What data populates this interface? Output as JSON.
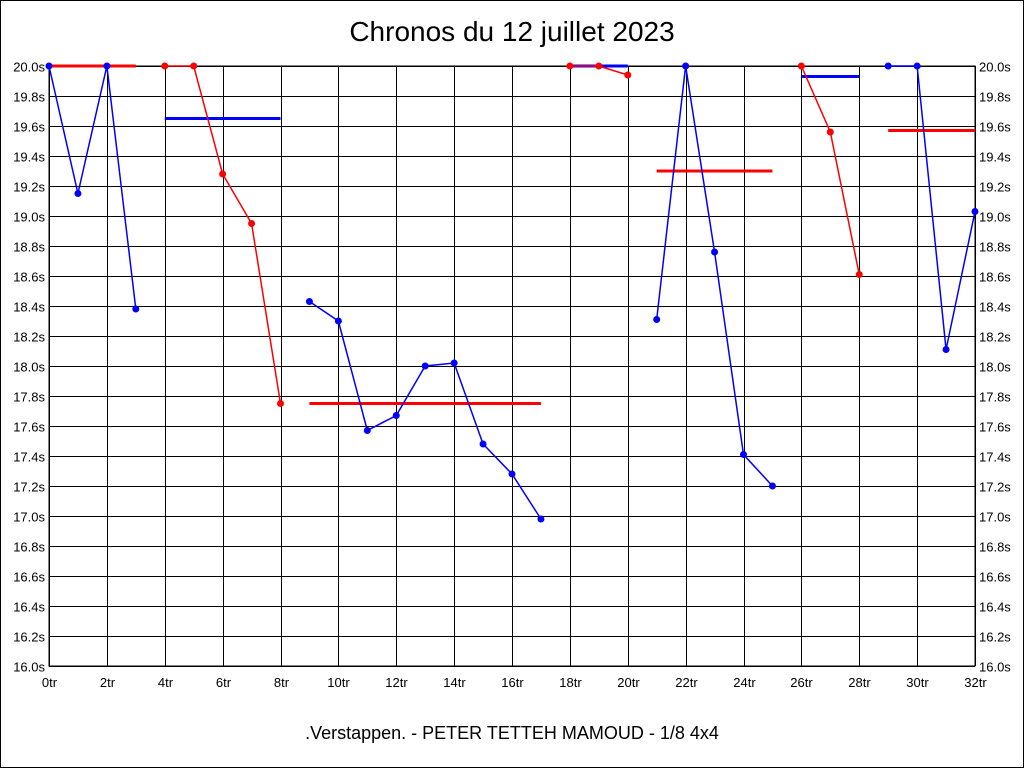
{
  "chart_data": {
    "type": "line",
    "title": "Chronos du 12 juillet 2023",
    "subtitle": ".Verstappen. - PETER TETTEH MAMOUD - 1/8 4x4",
    "xlabel": "",
    "ylabel": "",
    "xlim": [
      0,
      32
    ],
    "ylim": [
      16.0,
      20.0
    ],
    "x_ticks": [
      0,
      2,
      4,
      6,
      8,
      10,
      12,
      14,
      16,
      18,
      20,
      22,
      24,
      26,
      28,
      30,
      32
    ],
    "x_tick_labels": [
      "0tr",
      "2tr",
      "4tr",
      "6tr",
      "8tr",
      "10tr",
      "12tr",
      "14tr",
      "16tr",
      "18tr",
      "20tr",
      "22tr",
      "24tr",
      "26tr",
      "28tr",
      "30tr",
      "32tr"
    ],
    "y_ticks": [
      16.0,
      16.2,
      16.4,
      16.6,
      16.8,
      17.0,
      17.2,
      17.4,
      17.6,
      17.8,
      18.0,
      18.2,
      18.4,
      18.6,
      18.8,
      19.0,
      19.2,
      19.4,
      19.6,
      19.8,
      20.0
    ],
    "y_tick_labels": [
      "16.0s",
      "16.2s",
      "16.4s",
      "16.6s",
      "16.8s",
      "17.0s",
      "17.2s",
      "17.4s",
      "17.6s",
      "17.8s",
      "18.0s",
      "18.2s",
      "18.4s",
      "18.6s",
      "18.8s",
      "19.0s",
      "19.2s",
      "19.4s",
      "19.6s",
      "19.8s",
      "20.0s"
    ],
    "grid": true,
    "colors": {
      "blue": "#0000ff",
      "red": "#ff0000",
      "grid": "#000000"
    },
    "series": [
      {
        "color": "#0000ff",
        "x": [
          0,
          1,
          2,
          3
        ],
        "y": [
          20.0,
          19.15,
          20.0,
          18.38
        ]
      },
      {
        "color": "#ff0000",
        "x": [
          4,
          5,
          6,
          7,
          8
        ],
        "y": [
          20.0,
          20.0,
          19.28,
          18.95,
          17.75
        ]
      },
      {
        "color": "#0000ff",
        "x": [
          9,
          10,
          11,
          12,
          13,
          14,
          15,
          16,
          17
        ],
        "y": [
          18.43,
          18.3,
          17.57,
          17.67,
          18.0,
          18.02,
          17.48,
          17.28,
          16.98
        ]
      },
      {
        "color": "#ff0000",
        "x": [
          18,
          19,
          20
        ],
        "y": [
          20.0,
          20.0,
          19.94
        ]
      },
      {
        "color": "#0000ff",
        "x": [
          21,
          22,
          23,
          24,
          25
        ],
        "y": [
          18.31,
          20.0,
          18.76,
          17.41,
          17.2
        ]
      },
      {
        "color": "#ff0000",
        "x": [
          26,
          27,
          28
        ],
        "y": [
          20.0,
          19.56,
          18.61
        ]
      },
      {
        "color": "#0000ff",
        "x": [
          29,
          30,
          31,
          32
        ],
        "y": [
          20.0,
          20.0,
          18.11,
          19.03
        ]
      }
    ],
    "averages": [
      {
        "color": "#ff0000",
        "x": [
          0,
          3
        ],
        "y": 20.0
      },
      {
        "color": "#0000ff",
        "x": [
          4,
          8
        ],
        "y": 19.65
      },
      {
        "color": "#ff0000",
        "x": [
          9,
          17
        ],
        "y": 17.75
      },
      {
        "color": "#0000ff",
        "x": [
          18,
          20
        ],
        "y": 20.0
      },
      {
        "color": "#ff0000",
        "x": [
          21,
          25
        ],
        "y": 19.3
      },
      {
        "color": "#0000ff",
        "x": [
          26,
          28
        ],
        "y": 19.93
      },
      {
        "color": "#ff0000",
        "x": [
          29,
          32
        ],
        "y": 19.57
      }
    ]
  }
}
